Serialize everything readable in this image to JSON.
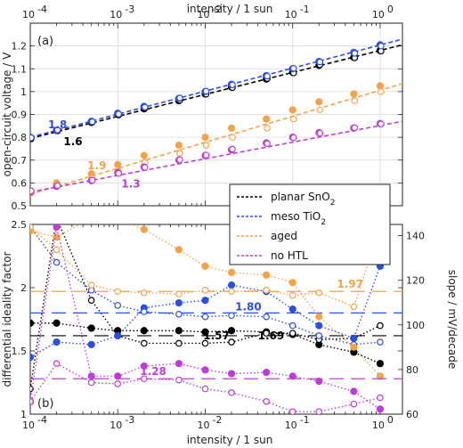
{
  "chart_data": [
    {
      "panel": "(a)",
      "type": "scatter",
      "xlabel": "intensity / 1 sun",
      "ylabel": "open-circuit voltage / V",
      "x_scale": "log",
      "xlim": [
        0.0001,
        1.8
      ],
      "ylim": [
        0.5,
        1.3
      ],
      "yticks": [
        "0.5",
        "0.6",
        "0.7",
        "0.8",
        "0.9",
        "1",
        "1.1",
        "1.2"
      ],
      "grid": true,
      "x": [
        0.0001,
        0.0002,
        0.0005,
        0.001,
        0.002,
        0.005,
        0.01,
        0.02,
        0.05,
        0.1,
        0.2,
        0.5,
        1.0
      ],
      "series": [
        {
          "name": "planar SnO2",
          "color": "#000000",
          "voc_filled": [
            0.795,
            0.83,
            0.865,
            0.9,
            0.925,
            0.96,
            0.99,
            1.02,
            1.055,
            1.085,
            1.115,
            1.15,
            1.18
          ],
          "voc_open": [
            0.793,
            0.828,
            0.866,
            0.898,
            0.928,
            0.962,
            0.989,
            1.018,
            1.058,
            1.082,
            1.118,
            1.148,
            1.178
          ],
          "fit": [
            0.795,
            1.205
          ]
        },
        {
          "name": "meso TiO2",
          "color": "#2c4fe0",
          "voc_filled": [
            0.8,
            0.83,
            0.87,
            0.905,
            0.935,
            0.97,
            1.0,
            1.032,
            1.07,
            1.1,
            1.132,
            1.172,
            1.205
          ],
          "voc_open": [
            0.798,
            0.832,
            0.868,
            0.902,
            0.932,
            0.972,
            1.002,
            1.03,
            1.068,
            1.102,
            1.13,
            1.168,
            1.2
          ],
          "fit": [
            0.8,
            1.23
          ]
        },
        {
          "name": "aged",
          "color": "#f5a24a",
          "voc_filled": [
            0.56,
            0.6,
            0.64,
            0.68,
            0.72,
            0.765,
            0.8,
            0.84,
            0.88,
            0.92,
            0.955,
            0.99,
            1.025
          ],
          "voc_open": [
            0.555,
            0.59,
            0.62,
            0.65,
            0.69,
            0.73,
            0.765,
            0.8,
            0.84,
            0.88,
            0.92,
            0.96,
            1.0
          ],
          "fit": [
            0.55,
            1.035
          ]
        },
        {
          "name": "no HTL",
          "color": "#c03cd8",
          "voc_filled": [
            0.56,
            0.585,
            0.61,
            0.645,
            0.67,
            0.7,
            0.72,
            0.745,
            0.775,
            0.8,
            0.82,
            0.84,
            0.86
          ],
          "voc_open": [
            0.565,
            0.588,
            0.612,
            0.642,
            0.668,
            0.702,
            0.722,
            0.748,
            0.772,
            0.798,
            0.818,
            0.842,
            0.858
          ],
          "fit": [
            0.56,
            0.87
          ]
        }
      ],
      "annotations": [
        {
          "text": "1.8",
          "color": "#2c4fe0",
          "x": 0.00016,
          "y": 0.84
        },
        {
          "text": "1.6",
          "color": "#000000",
          "x": 0.00024,
          "y": 0.765
        },
        {
          "text": "1.9",
          "color": "#f5a24a",
          "x": 0.00045,
          "y": 0.66
        },
        {
          "text": "1.3",
          "color": "#c03cd8",
          "x": 0.0011,
          "y": 0.58
        }
      ]
    },
    {
      "panel": "(b)",
      "type": "line",
      "xlabel": "intensity / 1 sun",
      "ylabel": "differential ideality factor",
      "y2label": "slope / mV/decade",
      "x_scale": "log",
      "xlim": [
        0.0001,
        1.8
      ],
      "ylim": [
        1.0,
        2.5
      ],
      "y2lim": [
        60,
        145
      ],
      "yticks": [
        "1",
        "1.5",
        "2",
        "2.5"
      ],
      "y2ticks": [
        "60",
        "80",
        "100",
        "120",
        "140"
      ],
      "x": [
        0.0001,
        0.0002,
        0.0005,
        0.001,
        0.002,
        0.005,
        0.01,
        0.02,
        0.05,
        0.1,
        0.2,
        0.5,
        1.0
      ],
      "series": [
        {
          "name": "planar SnO2",
          "color": "#000000",
          "n_filled": [
            1.72,
            1.72,
            1.68,
            1.66,
            1.66,
            1.66,
            1.65,
            1.66,
            1.65,
            1.63,
            1.55,
            1.49,
            1.4
          ],
          "n_open": [
            1.2,
            2.55,
            1.9,
            1.62,
            1.56,
            1.56,
            1.56,
            1.57,
            1.64,
            1.64,
            1.59,
            1.6,
            1.7
          ],
          "mean": 1.62
        },
        {
          "name": "meso TiO2",
          "color": "#2c4fe0",
          "n_filled": [
            1.45,
            1.57,
            1.55,
            1.62,
            1.84,
            1.88,
            1.9,
            2.02,
            1.97,
            1.83,
            1.7,
            1.6,
            2.17
          ],
          "n_open": [
            2.48,
            2.2,
            1.98,
            1.86,
            1.81,
            1.79,
            1.77,
            1.78,
            1.77,
            1.7,
            1.62,
            1.55,
            1.57
          ],
          "mean": 1.8
        },
        {
          "name": "aged",
          "color": "#f5a24a",
          "n_filled": [
            2.45,
            2.4,
            2.55,
            2.55,
            2.46,
            2.3,
            2.17,
            2.12,
            2.1,
            2.04,
            1.77,
            1.53,
            1.3
          ],
          "n_open": [
            2.48,
            2.3,
            2.02,
            1.97,
            1.96,
            1.95,
            1.98,
            1.97,
            1.98,
            1.94,
            1.96,
            1.85,
            2.48
          ],
          "mean": 1.97
        },
        {
          "name": "no HTL",
          "color": "#c03cd8",
          "n_filled": [
            1.1,
            2.48,
            1.3,
            1.3,
            1.38,
            1.4,
            1.35,
            1.32,
            1.33,
            1.3,
            1.26,
            1.18,
            1.04
          ],
          "n_open": [
            1.1,
            1.4,
            1.25,
            1.24,
            1.28,
            1.27,
            1.2,
            1.17,
            1.1,
            1.02,
            1.02,
            1.08,
            1.13
          ],
          "mean": 1.28
        }
      ],
      "annotations": [
        {
          "text": "1.97",
          "color": "#f5a24a",
          "x": 0.32,
          "y": 2.0
        },
        {
          "text": "1.80",
          "color": "#2c4fe0",
          "x": 0.022,
          "y": 1.82
        },
        {
          "text": "1.57",
          "color": "#000000",
          "x": 0.0095,
          "y": 1.59
        },
        {
          "text": "1.69",
          "color": "#000000",
          "x": 0.04,
          "y": 1.59
        },
        {
          "text": "1.28",
          "color": "#c03cd8",
          "x": 0.0018,
          "y": 1.31
        }
      ]
    }
  ],
  "x_tick_labels": [
    "10",
    "-4",
    "10",
    "-3",
    "10",
    "-2",
    "10",
    "-1",
    "10",
    "0"
  ],
  "legend": [
    {
      "label": "planar SnO",
      "sub": "2",
      "color": "#000000"
    },
    {
      "label": "meso TiO",
      "sub": "2",
      "color": "#2c4fe0"
    },
    {
      "label": "aged",
      "sub": "",
      "color": "#f5a24a"
    },
    {
      "label": "no HTL",
      "sub": "",
      "color": "#c03cd8"
    }
  ],
  "top_xlabel": "intensity / 1 sun",
  "bottom_xlabel": "intensity / 1 sun"
}
